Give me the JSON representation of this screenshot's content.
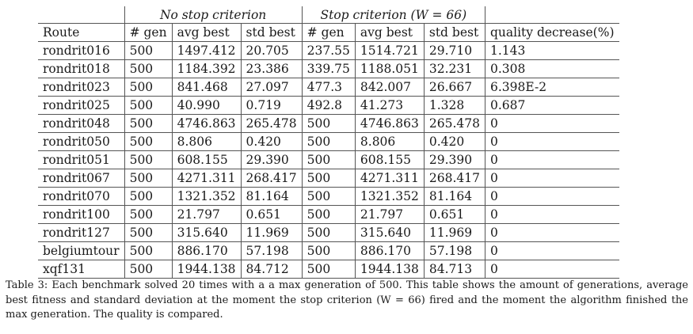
{
  "table": {
    "group_headers": {
      "no_stop": "No stop criterion",
      "stop": "Stop criterion (W = 66)"
    },
    "columns": [
      "Route",
      "# gen",
      "avg best",
      "std best",
      "# gen",
      "avg best",
      "std best",
      "quality decrease(%)"
    ],
    "rows": [
      [
        "rondrit016",
        "500",
        "1497.412",
        "20.705",
        "237.55",
        "1514.721",
        "29.710",
        "1.143"
      ],
      [
        "rondrit018",
        "500",
        "1184.392",
        "23.386",
        "339.75",
        "1188.051",
        "32.231",
        "0.308"
      ],
      [
        "rondrit023",
        "500",
        "841.468",
        "27.097",
        "477.3",
        "842.007",
        "26.667",
        "6.398E-2"
      ],
      [
        "rondrit025",
        "500",
        "40.990",
        "0.719",
        "492.8",
        "41.273",
        "1.328",
        "0.687"
      ],
      [
        "rondrit048",
        "500",
        "4746.863",
        "265.478",
        "500",
        "4746.863",
        "265.478",
        "0"
      ],
      [
        "rondrit050",
        "500",
        "8.806",
        "0.420",
        "500",
        "8.806",
        "0.420",
        "0"
      ],
      [
        "rondrit051",
        "500",
        "608.155",
        "29.390",
        "500",
        "608.155",
        "29.390",
        "0"
      ],
      [
        "rondrit067",
        "500",
        "4271.311",
        "268.417",
        "500",
        "4271.311",
        "268.417",
        "0"
      ],
      [
        "rondrit070",
        "500",
        "1321.352",
        "81.164",
        "500",
        "1321.352",
        "81.164",
        "0"
      ],
      [
        "rondrit100",
        "500",
        "21.797",
        "0.651",
        "500",
        "21.797",
        "0.651",
        "0"
      ],
      [
        "rondrit127",
        "500",
        "315.640",
        "11.969",
        "500",
        "315.640",
        "11.969",
        "0"
      ],
      [
        "belgiumtour",
        "500",
        "886.170",
        "57.198",
        "500",
        "886.170",
        "57.198",
        "0"
      ],
      [
        "xqf131",
        "500",
        "1944.138",
        "84.712",
        "500",
        "1944.138",
        "84.713",
        "0"
      ]
    ]
  },
  "caption": "Table 3: Each benchmark solved 20 times with a a max generation of 500. This table shows the amount of generations, average best fitness and standard deviation at the moment the stop criterion (W = 66) fired and the moment the algorithm finished the max generation. The quality is compared."
}
